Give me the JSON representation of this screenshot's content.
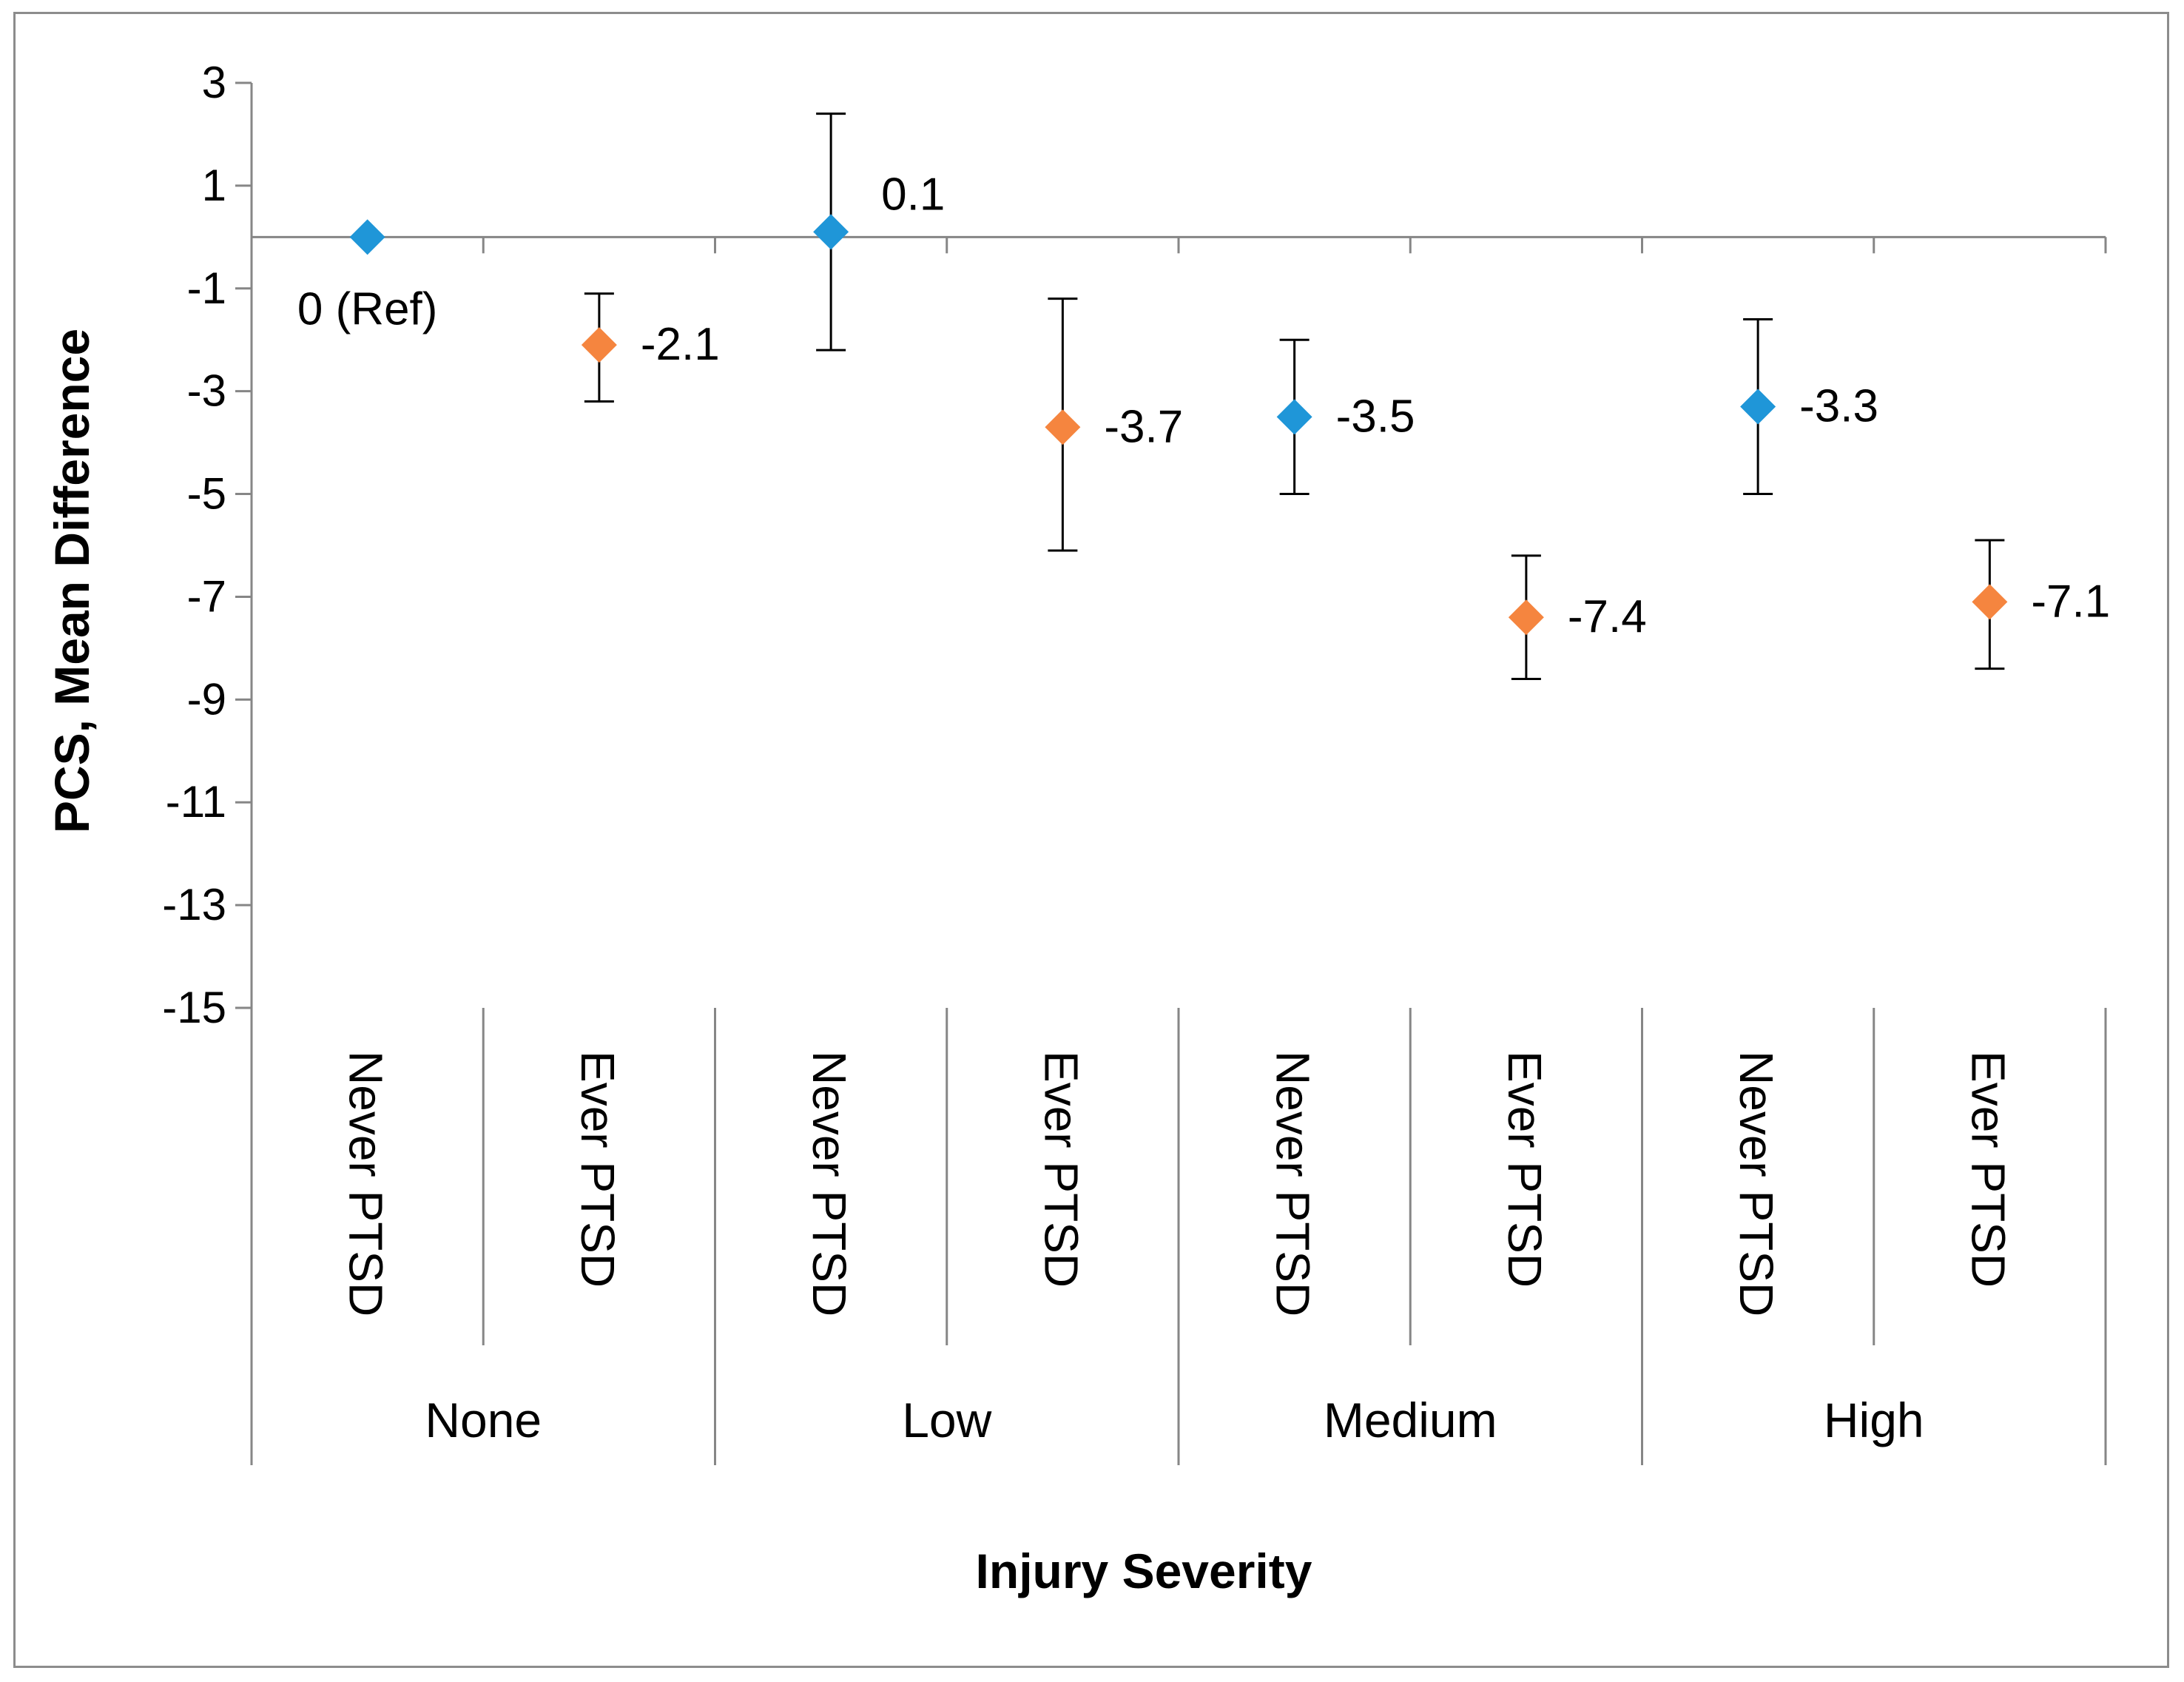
{
  "chart_data": {
    "type": "scatter",
    "ylabel": "PCS, Mean Difference",
    "xlabel": "Injury Severity",
    "ylim": [
      -15,
      3
    ],
    "yticks": [
      3,
      1,
      -1,
      -3,
      -5,
      -7,
      -9,
      -11,
      -13,
      -15
    ],
    "groups": [
      "None",
      "Low",
      "Medium",
      "High"
    ],
    "categories": [
      "Never PTSD",
      "Ever PTSD",
      "Never PTSD",
      "Ever PTSD",
      "Never PTSD",
      "Ever PTSD",
      "Never PTSD",
      "Ever PTSD"
    ],
    "series": [
      {
        "name": "Never PTSD",
        "color": "#1f96d8",
        "marker": "diamond",
        "indices": [
          0,
          2,
          4,
          6
        ]
      },
      {
        "name": "Ever PTSD",
        "color": "#f5853f",
        "marker": "diamond",
        "indices": [
          1,
          3,
          5,
          7
        ]
      }
    ],
    "points": [
      {
        "value": 0,
        "low": null,
        "high": null,
        "label": "0 (Ref)",
        "series": "Never PTSD"
      },
      {
        "value": -2.1,
        "low": -3.2,
        "high": -1.1,
        "label": "-2.1",
        "series": "Ever PTSD"
      },
      {
        "value": 0.1,
        "low": -2.2,
        "high": 2.4,
        "label": "0.1",
        "series": "Never PTSD"
      },
      {
        "value": -3.7,
        "low": -6.1,
        "high": -1.2,
        "label": "-3.7",
        "series": "Ever PTSD"
      },
      {
        "value": -3.5,
        "low": -5.0,
        "high": -2.0,
        "label": "-3.5",
        "series": "Never PTSD"
      },
      {
        "value": -7.4,
        "low": -8.6,
        "high": -6.2,
        "label": "-7.4",
        "series": "Ever PTSD"
      },
      {
        "value": -3.3,
        "low": -5.0,
        "high": -1.6,
        "label": "-3.3",
        "series": "Never PTSD"
      },
      {
        "value": -7.1,
        "low": -8.4,
        "high": -5.9,
        "label": "-7.1",
        "series": "Ever PTSD"
      }
    ]
  }
}
